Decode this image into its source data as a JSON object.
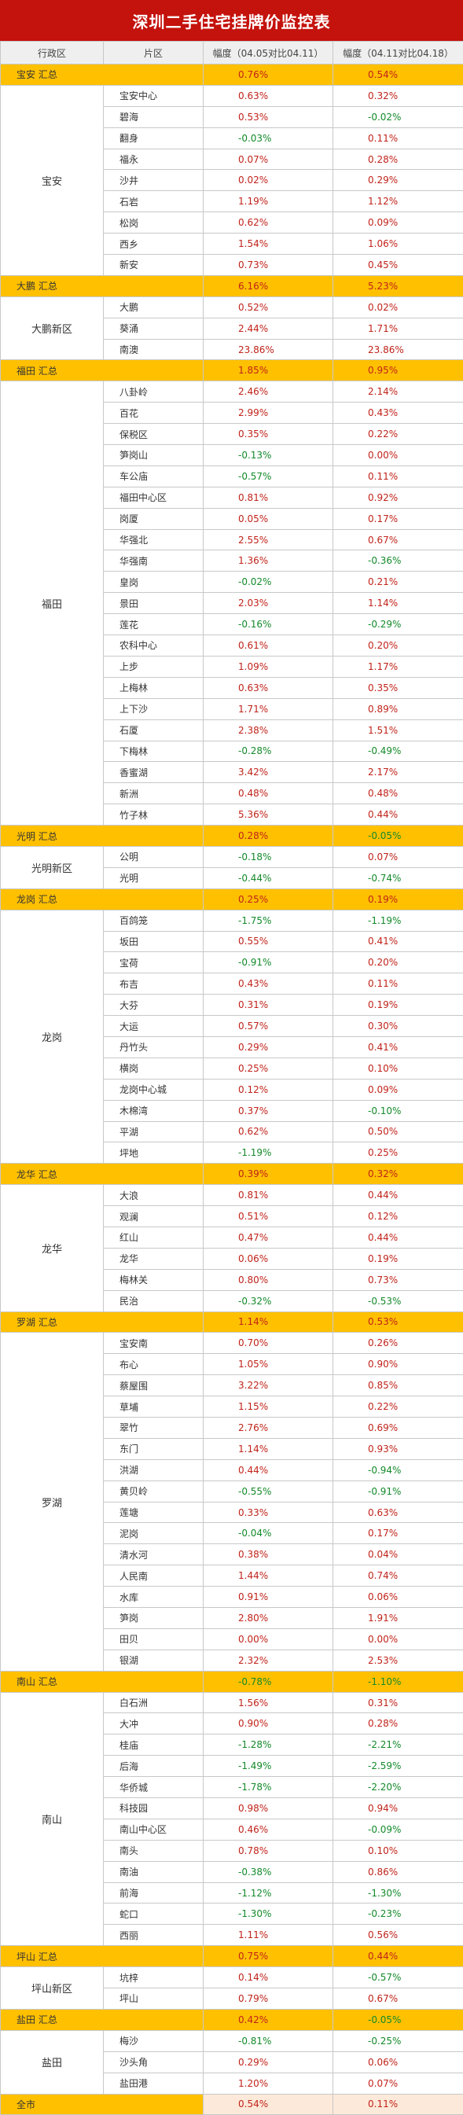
{
  "title": "深圳二手住宅挂牌价监控表",
  "columns": [
    "行政区",
    "片区",
    "幅度（04.05对比04.11）",
    "幅度（04.11对比04.18）"
  ],
  "groups": [
    {
      "name": "宝安",
      "summary": {
        "label": "宝安 汇总",
        "v1": "0.76%",
        "v2": "0.54%"
      },
      "rows": [
        {
          "area": "宝安中心",
          "v1": "0.63%",
          "v2": "0.32%"
        },
        {
          "area": "碧海",
          "v1": "0.53%",
          "v2": "-0.02%"
        },
        {
          "area": "翻身",
          "v1": "-0.03%",
          "v2": "0.11%"
        },
        {
          "area": "福永",
          "v1": "0.07%",
          "v2": "0.28%"
        },
        {
          "area": "沙井",
          "v1": "0.02%",
          "v2": "0.29%"
        },
        {
          "area": "石岩",
          "v1": "1.19%",
          "v2": "1.12%"
        },
        {
          "area": "松岗",
          "v1": "0.62%",
          "v2": "0.09%"
        },
        {
          "area": "西乡",
          "v1": "1.54%",
          "v2": "1.06%"
        },
        {
          "area": "新安",
          "v1": "0.73%",
          "v2": "0.45%"
        }
      ]
    },
    {
      "name": "大鹏新区",
      "summary": {
        "label": "大鹏 汇总",
        "v1": "6.16%",
        "v2": "5.23%"
      },
      "rows": [
        {
          "area": "大鹏",
          "v1": "0.52%",
          "v2": "0.02%"
        },
        {
          "area": "葵涌",
          "v1": "2.44%",
          "v2": "1.71%"
        },
        {
          "area": "南澳",
          "v1": "23.86%",
          "v2": "23.86%"
        }
      ]
    },
    {
      "name": "福田",
      "summary": {
        "label": "福田 汇总",
        "v1": "1.85%",
        "v2": "0.95%"
      },
      "rows": [
        {
          "area": "八卦岭",
          "v1": "2.46%",
          "v2": "2.14%"
        },
        {
          "area": "百花",
          "v1": "2.99%",
          "v2": "0.43%"
        },
        {
          "area": "保税区",
          "v1": "0.35%",
          "v2": "0.22%"
        },
        {
          "area": "笋岗山",
          "v1": "-0.13%",
          "v2": "0.00%"
        },
        {
          "area": "车公庙",
          "v1": "-0.57%",
          "v2": "0.11%"
        },
        {
          "area": "福田中心区",
          "v1": "0.81%",
          "v2": "0.92%"
        },
        {
          "area": "岗厦",
          "v1": "0.05%",
          "v2": "0.17%"
        },
        {
          "area": "华强北",
          "v1": "2.55%",
          "v2": "0.67%"
        },
        {
          "area": "华强南",
          "v1": "1.36%",
          "v2": "-0.36%"
        },
        {
          "area": "皇岗",
          "v1": "-0.02%",
          "v2": "0.21%"
        },
        {
          "area": "景田",
          "v1": "2.03%",
          "v2": "1.14%"
        },
        {
          "area": "莲花",
          "v1": "-0.16%",
          "v2": "-0.29%"
        },
        {
          "area": "农科中心",
          "v1": "0.61%",
          "v2": "0.20%"
        },
        {
          "area": "上步",
          "v1": "1.09%",
          "v2": "1.17%"
        },
        {
          "area": "上梅林",
          "v1": "0.63%",
          "v2": "0.35%"
        },
        {
          "area": "上下沙",
          "v1": "1.71%",
          "v2": "0.89%"
        },
        {
          "area": "石厦",
          "v1": "2.38%",
          "v2": "1.51%"
        },
        {
          "area": "下梅林",
          "v1": "-0.28%",
          "v2": "-0.49%"
        },
        {
          "area": "香蜜湖",
          "v1": "3.42%",
          "v2": "2.17%"
        },
        {
          "area": "新洲",
          "v1": "0.48%",
          "v2": "0.48%"
        },
        {
          "area": "竹子林",
          "v1": "5.36%",
          "v2": "0.44%"
        }
      ]
    },
    {
      "name": "光明新区",
      "summary": {
        "label": "光明 汇总",
        "v1": "0.28%",
        "v2": "-0.05%"
      },
      "rows": [
        {
          "area": "公明",
          "v1": "-0.18%",
          "v2": "0.07%"
        },
        {
          "area": "光明",
          "v1": "-0.44%",
          "v2": "-0.74%"
        }
      ]
    },
    {
      "name": "龙岗",
      "summary": {
        "label": "龙岗 汇总",
        "v1": "0.25%",
        "v2": "0.19%"
      },
      "rows": [
        {
          "area": "百鸽笼",
          "v1": "-1.75%",
          "v2": "-1.19%"
        },
        {
          "area": "坂田",
          "v1": "0.55%",
          "v2": "0.41%"
        },
        {
          "area": "宝荷",
          "v1": "-0.91%",
          "v2": "0.20%"
        },
        {
          "area": "布吉",
          "v1": "0.43%",
          "v2": "0.11%"
        },
        {
          "area": "大芬",
          "v1": "0.31%",
          "v2": "0.19%"
        },
        {
          "area": "大运",
          "v1": "0.57%",
          "v2": "0.30%"
        },
        {
          "area": "丹竹头",
          "v1": "0.29%",
          "v2": "0.41%"
        },
        {
          "area": "横岗",
          "v1": "0.25%",
          "v2": "0.10%"
        },
        {
          "area": "龙岗中心城",
          "v1": "0.12%",
          "v2": "0.09%"
        },
        {
          "area": "木棉湾",
          "v1": "0.37%",
          "v2": "-0.10%"
        },
        {
          "area": "平湖",
          "v1": "0.62%",
          "v2": "0.50%"
        },
        {
          "area": "坪地",
          "v1": "-1.19%",
          "v2": "0.25%"
        }
      ]
    },
    {
      "name": "龙华",
      "summary": {
        "label": "龙华 汇总",
        "v1": "0.39%",
        "v2": "0.32%"
      },
      "rows": [
        {
          "area": "大浪",
          "v1": "0.81%",
          "v2": "0.44%"
        },
        {
          "area": "观澜",
          "v1": "0.51%",
          "v2": "0.12%"
        },
        {
          "area": "红山",
          "v1": "0.47%",
          "v2": "0.44%"
        },
        {
          "area": "龙华",
          "v1": "0.06%",
          "v2": "0.19%"
        },
        {
          "area": "梅林关",
          "v1": "0.80%",
          "v2": "0.73%"
        },
        {
          "area": "民治",
          "v1": "-0.32%",
          "v2": "-0.53%"
        }
      ]
    },
    {
      "name": "罗湖",
      "summary": {
        "label": "罗湖 汇总",
        "v1": "1.14%",
        "v2": "0.53%"
      },
      "rows": [
        {
          "area": "宝安南",
          "v1": "0.70%",
          "v2": "0.26%"
        },
        {
          "area": "布心",
          "v1": "1.05%",
          "v2": "0.90%"
        },
        {
          "area": "蔡屋围",
          "v1": "3.22%",
          "v2": "0.85%"
        },
        {
          "area": "草埔",
          "v1": "1.15%",
          "v2": "0.22%"
        },
        {
          "area": "翠竹",
          "v1": "2.76%",
          "v2": "0.69%"
        },
        {
          "area": "东门",
          "v1": "1.14%",
          "v2": "0.93%"
        },
        {
          "area": "洪湖",
          "v1": "0.44%",
          "v2": "-0.94%"
        },
        {
          "area": "黄贝岭",
          "v1": "-0.55%",
          "v2": "-0.91%"
        },
        {
          "area": "莲塘",
          "v1": "0.33%",
          "v2": "0.63%"
        },
        {
          "area": "泥岗",
          "v1": "-0.04%",
          "v2": "0.17%"
        },
        {
          "area": "清水河",
          "v1": "0.38%",
          "v2": "0.04%"
        },
        {
          "area": "人民南",
          "v1": "1.44%",
          "v2": "0.74%"
        },
        {
          "area": "水库",
          "v1": "0.91%",
          "v2": "0.06%"
        },
        {
          "area": "笋岗",
          "v1": "2.80%",
          "v2": "1.91%"
        },
        {
          "area": "田贝",
          "v1": "0.00%",
          "v2": "0.00%"
        },
        {
          "area": "银湖",
          "v1": "2.32%",
          "v2": "2.53%"
        }
      ]
    },
    {
      "name": "南山",
      "summary": {
        "label": "南山 汇总",
        "v1": "-0.78%",
        "v2": "-1.10%"
      },
      "rows": [
        {
          "area": "白石洲",
          "v1": "1.56%",
          "v2": "0.31%"
        },
        {
          "area": "大冲",
          "v1": "0.90%",
          "v2": "0.28%"
        },
        {
          "area": "桂庙",
          "v1": "-1.28%",
          "v2": "-2.21%"
        },
        {
          "area": "后海",
          "v1": "-1.49%",
          "v2": "-2.59%"
        },
        {
          "area": "华侨城",
          "v1": "-1.78%",
          "v2": "-2.20%"
        },
        {
          "area": "科技园",
          "v1": "0.98%",
          "v2": "0.94%"
        },
        {
          "area": "南山中心区",
          "v1": "0.46%",
          "v2": "-0.09%"
        },
        {
          "area": "南头",
          "v1": "0.78%",
          "v2": "0.10%"
        },
        {
          "area": "南油",
          "v1": "-0.38%",
          "v2": "0.86%"
        },
        {
          "area": "前海",
          "v1": "-1.12%",
          "v2": "-1.30%"
        },
        {
          "area": "蛇口",
          "v1": "-1.30%",
          "v2": "-0.23%"
        },
        {
          "area": "西丽",
          "v1": "1.11%",
          "v2": "0.56%"
        }
      ]
    },
    {
      "name": "坪山新区",
      "summary": {
        "label": "坪山 汇总",
        "v1": "0.75%",
        "v2": "0.44%"
      },
      "rows": [
        {
          "area": "坑梓",
          "v1": "0.14%",
          "v2": "-0.57%"
        },
        {
          "area": "坪山",
          "v1": "0.79%",
          "v2": "0.67%"
        }
      ]
    },
    {
      "name": "盐田",
      "summary": {
        "label": "盐田 汇总",
        "v1": "0.42%",
        "v2": "-0.05%"
      },
      "rows": [
        {
          "area": "梅沙",
          "v1": "-0.81%",
          "v2": "-0.25%"
        },
        {
          "area": "沙头角",
          "v1": "0.29%",
          "v2": "0.06%"
        },
        {
          "area": "盐田港",
          "v1": "1.20%",
          "v2": "0.07%"
        }
      ]
    }
  ],
  "total": {
    "label": "全市",
    "v1": "0.54%",
    "v2": "0.11%"
  }
}
